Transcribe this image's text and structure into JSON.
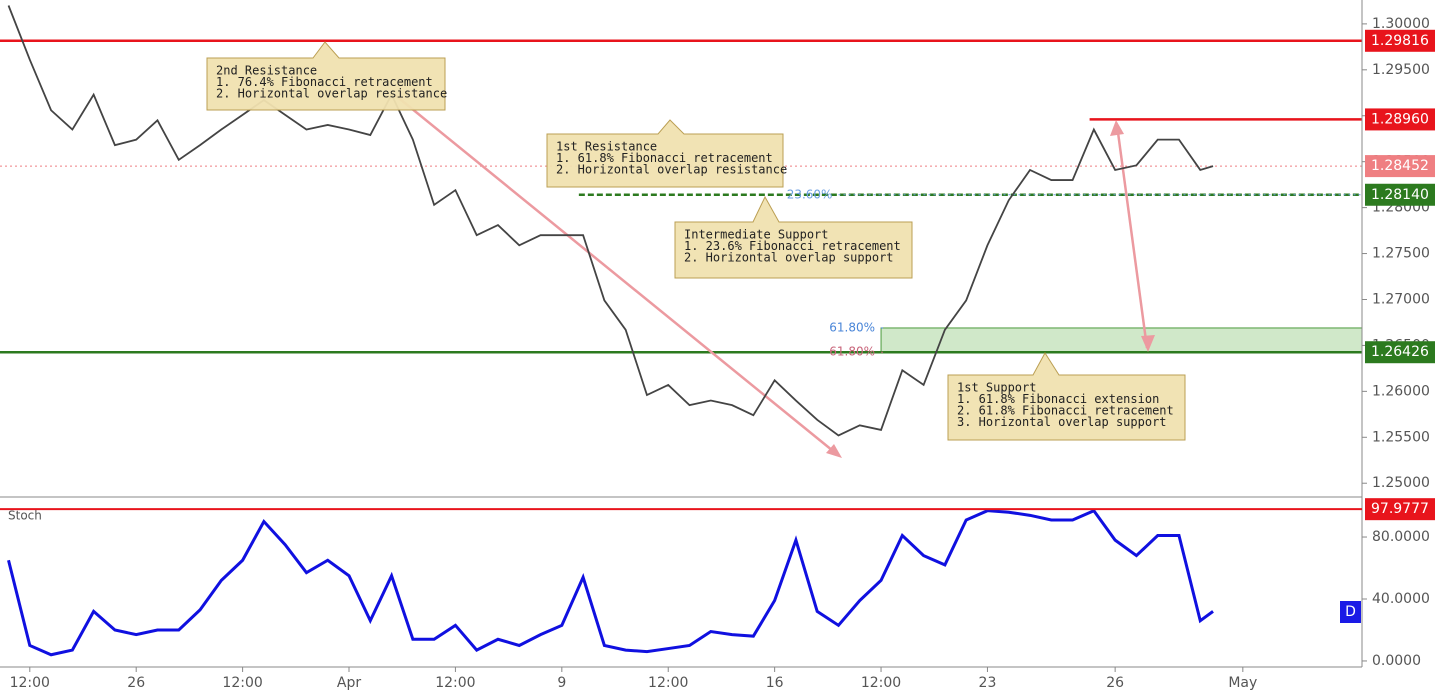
{
  "chart_data": [
    {
      "type": "line",
      "color": "#444444",
      "xlim": [
        -3.2,
        28.8
      ],
      "xticks": [
        {
          "value": -2.5,
          "label": "12:00"
        },
        {
          "value": 0,
          "label": "26"
        },
        {
          "value": 2.5,
          "label": "12:00"
        },
        {
          "value": 5,
          "label": "Apr"
        },
        {
          "value": 7.5,
          "label": "12:00"
        },
        {
          "value": 10,
          "label": "9"
        },
        {
          "value": 12.5,
          "label": "12:00"
        },
        {
          "value": 15,
          "label": "16"
        },
        {
          "value": 17.5,
          "label": "12:00"
        },
        {
          "value": 20,
          "label": "23"
        },
        {
          "value": 23,
          "label": "26"
        },
        {
          "value": 26,
          "label": "May"
        }
      ],
      "ylim": [
        1.2485,
        1.3026
      ],
      "yticks": [
        {
          "value": 1.25,
          "label": "1.25000"
        },
        {
          "value": 1.255,
          "label": "1.25500"
        },
        {
          "value": 1.26,
          "label": "1.26000"
        },
        {
          "value": 1.265,
          "label": "1.26500"
        },
        {
          "value": 1.27,
          "label": "1.27000"
        },
        {
          "value": 1.275,
          "label": "1.27500"
        },
        {
          "value": 1.28,
          "label": "1.28000"
        },
        {
          "value": 1.285,
          "label": "1.28500"
        },
        {
          "value": 1.29,
          "label": "1.29000"
        },
        {
          "value": 1.295,
          "label": "1.29500"
        },
        {
          "value": 1.3,
          "label": "1.30000"
        }
      ],
      "x": [
        -3,
        -2.5,
        -2,
        -1.5,
        -1,
        -0.5,
        0,
        0.5,
        1,
        1.5,
        2,
        2.5,
        3,
        3.5,
        4,
        4.5,
        5,
        5.5,
        6,
        6.5,
        7,
        7.5,
        8,
        8.5,
        9,
        9.5,
        10,
        10.5,
        11,
        11.5,
        12,
        12.5,
        13,
        13.5,
        14,
        14.5,
        15,
        15.5,
        16,
        16.5,
        17,
        17.5,
        18,
        18.5,
        19,
        19.5,
        20,
        20.5,
        21,
        21.5,
        22,
        22.5,
        23,
        23.5,
        24,
        24.5,
        25,
        25.3
      ],
      "values": [
        1.302,
        1.2961,
        1.2906,
        1.2885,
        1.2923,
        1.2868,
        1.2874,
        1.2895,
        1.2852,
        1.2868,
        1.2885,
        1.2901,
        1.2917,
        1.2901,
        1.2885,
        1.289,
        1.2885,
        1.2879,
        1.2923,
        1.2874,
        1.2803,
        1.2819,
        1.277,
        1.2781,
        1.2759,
        1.277,
        1.277,
        1.277,
        1.2699,
        1.2667,
        1.2596,
        1.2607,
        1.2585,
        1.259,
        1.2585,
        1.2574,
        1.2612,
        1.259,
        1.2569,
        1.2552,
        1.2563,
        1.2558,
        1.2623,
        1.2607,
        1.2667,
        1.2699,
        1.2759,
        1.2808,
        1.2841,
        1.283,
        1.283,
        1.2885,
        1.2841,
        1.2846,
        1.2874,
        1.2874,
        1.2841,
        1.28452
      ],
      "levels": [
        {
          "value": 1.29816,
          "label": "1.29816",
          "color": "#e8141c",
          "style": "solid"
        },
        {
          "value": 1.2896,
          "label": "1.28960",
          "color": "#e8141c",
          "style": "solid"
        },
        {
          "value": 1.28452,
          "label": "1.28452",
          "color": "#ef7f82",
          "style": "dotted"
        },
        {
          "value": 1.2814,
          "label": "1.28140",
          "color": "#2c7a1f",
          "style": "dashed"
        },
        {
          "value": 1.26426,
          "label": "1.26426",
          "color": "#2c7a1f",
          "style": "solid"
        }
      ],
      "zone": [
        1.26426,
        1.2669
      ],
      "fib_labels": [
        {
          "value": 1.2814,
          "label": "23.60%",
          "color": "#6c9ee0"
        },
        {
          "value": 1.2669,
          "label": "61.80%",
          "color": "#4a86d8"
        },
        {
          "value": 1.26426,
          "label": "61.80%",
          "color": "#c8647a"
        }
      ],
      "annotations": [
        {
          "lines": [
            "2nd Resistance",
            "1. 76.4% Fibonacci retracement",
            "2. Horizontal overlap resistance"
          ]
        },
        {
          "lines": [
            "1st Resistance",
            "1. 61.8% Fibonacci retracement",
            "2. Horizontal overlap resistance"
          ]
        },
        {
          "lines": [
            "Intermediate Support",
            "1. 23.6% Fibonacci retracement",
            "2. Horizontal overlap support"
          ]
        },
        {
          "lines": [
            "1st Support",
            "1. 61.8% Fibonacci extension",
            "2. 61.8% Fibonacci retracement",
            "3. Horizontal overlap support"
          ]
        }
      ]
    },
    {
      "type": "line",
      "title": "Stoch",
      "color": "#1010e0",
      "interval": "D",
      "ylim": [
        -3.9,
        103.9
      ],
      "yticks": [
        {
          "value": 0,
          "label": "0.0000"
        },
        {
          "value": 40,
          "label": "40.0000"
        },
        {
          "value": 80,
          "label": "80.0000"
        }
      ],
      "values": [
        65,
        10,
        4,
        7,
        32,
        20,
        17,
        20,
        20,
        33,
        52,
        65,
        90,
        75,
        57,
        65,
        55,
        26,
        55,
        14,
        14,
        23,
        7,
        14,
        10,
        17,
        23,
        54,
        10,
        7,
        6,
        8,
        10,
        19,
        17,
        16,
        39,
        78,
        32,
        23,
        39,
        52,
        81,
        68,
        62,
        91,
        97,
        96,
        94,
        91,
        91,
        97,
        78,
        68,
        81,
        81,
        26,
        32
      ],
      "level": {
        "value": 97.9777,
        "label": "97.9777",
        "color": "#e8141c"
      }
    }
  ]
}
